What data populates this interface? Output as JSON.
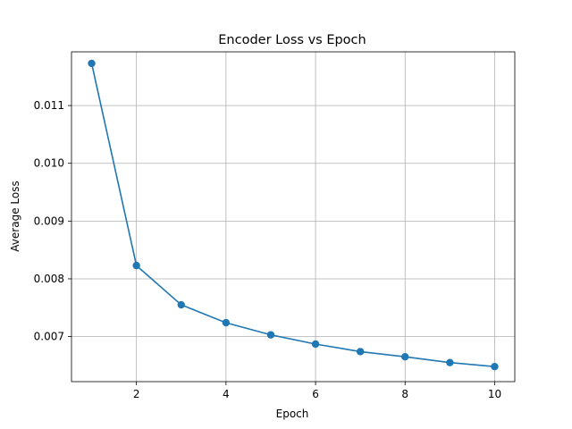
{
  "chart_data": {
    "type": "line",
    "title": "Encoder Loss vs Epoch",
    "xlabel": "Epoch",
    "ylabel": "Average Loss",
    "x": [
      1,
      2,
      3,
      4,
      5,
      6,
      7,
      8,
      9,
      10
    ],
    "series": [
      {
        "values": [
          0.01173,
          0.00823,
          0.00755,
          0.00724,
          0.00703,
          0.00687,
          0.00674,
          0.00665,
          0.00655,
          0.00648
        ],
        "color": "#1f77b4",
        "marker": "circle"
      }
    ],
    "xlim": [
      0.55,
      10.45
    ],
    "ylim": [
      0.00622,
      0.01193
    ],
    "xticks": [
      2,
      4,
      6,
      8,
      10
    ],
    "xtick_labels": [
      "2",
      "4",
      "6",
      "8",
      "10"
    ],
    "yticks": [
      0.007,
      0.008,
      0.009,
      0.01,
      0.011
    ],
    "ytick_labels": [
      "0.007",
      "0.008",
      "0.009",
      "0.010",
      "0.011"
    ],
    "grid": true,
    "legend": false
  }
}
